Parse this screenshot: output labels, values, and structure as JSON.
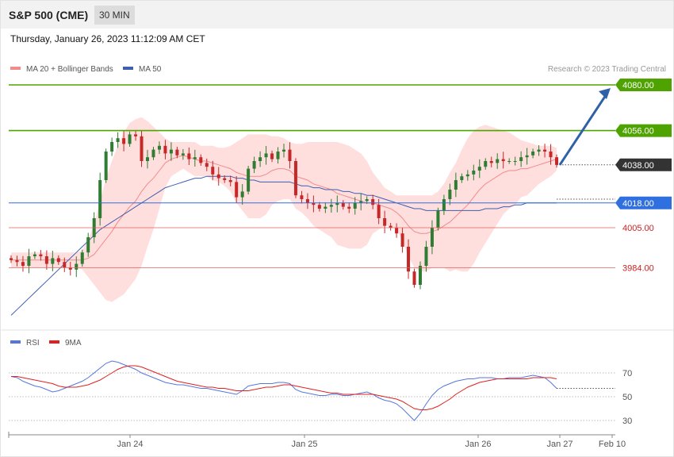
{
  "header": {
    "title": "S&P 500 (CME)",
    "timeframe": "30 MIN",
    "datetime": "Thursday, January 26, 2023 11:12:09 AM CET"
  },
  "legend": {
    "ma20": "MA 20 + Bollinger Bands",
    "ma50": "MA 50",
    "credit": "Research © 2023 Trading Central"
  },
  "rsi_legend": {
    "rsi": "RSI",
    "ma9": "9MA"
  },
  "colors": {
    "up": "#2e7d32",
    "down": "#c62828",
    "ma20": "#f28b8b",
    "ma50": "#3f5fb0",
    "band": "#ffdede",
    "resistance": "#4ea300",
    "pivot": "#2f6fe0",
    "support": "#e06060",
    "rsi": "#5577dd",
    "ma9": "#e02020"
  },
  "chart_data": {
    "type": "candlestick",
    "price_panel": {
      "levels": [
        {
          "label": "4080.00",
          "value": 4080,
          "kind": "resistance"
        },
        {
          "label": "4056.00",
          "value": 4056,
          "kind": "resistance"
        },
        {
          "label": "4038.00",
          "value": 4038,
          "kind": "last"
        },
        {
          "label": "4018.00",
          "value": 4018,
          "kind": "pivot"
        },
        {
          "label": "4005.00",
          "value": 4005,
          "kind": "support"
        },
        {
          "label": "3984.00",
          "value": 3984,
          "kind": "support"
        }
      ],
      "close_path": [
        3988,
        3987,
        3985,
        3990,
        3991,
        3990,
        3986,
        3989,
        3987,
        3984,
        3983,
        3986,
        3992,
        4000,
        4010,
        4030,
        4045,
        4050,
        4052,
        4049,
        4054,
        4053,
        4040,
        4042,
        4046,
        4048,
        4044,
        4046,
        4043,
        4044,
        4041,
        4042,
        4039,
        4037,
        4033,
        4031,
        4030,
        4029,
        4021,
        4024,
        4036,
        4040,
        4042,
        4044,
        4041,
        4045,
        4046,
        4040,
        4022,
        4020,
        4018,
        4017,
        4015,
        4016,
        4017,
        4018,
        4016,
        4015,
        4018,
        4019,
        4020,
        4017,
        4010,
        4006,
        4005,
        4002,
        3995,
        3982,
        3975,
        3985,
        3995,
        4005,
        4014,
        4020,
        4025,
        4030,
        4032,
        4033,
        4035,
        4037,
        4040,
        4039,
        4041,
        4040,
        4040,
        4040,
        4042,
        4043,
        4045,
        4046,
        4045,
        4042,
        4038
      ],
      "ma20": [
        3988,
        3988,
        3988,
        3988,
        3988,
        3988,
        3988,
        3988,
        3988,
        3988,
        3988,
        3988,
        3988,
        3989,
        3991,
        3995,
        3999,
        4003,
        4008,
        4012,
        4016,
        4019,
        4024,
        4028,
        4031,
        4035,
        4039,
        4041,
        4042,
        4043,
        4042,
        4041,
        4040,
        4040,
        4039,
        4038,
        4037,
        4036,
        4034,
        4033,
        4032,
        4032,
        4032,
        4033,
        4035,
        4036,
        4036,
        4035,
        4032,
        4031,
        4030,
        4028,
        4027,
        4026,
        4025,
        4023,
        4022,
        4021,
        4020,
        4019,
        4018,
        4018,
        4017,
        4016,
        4015,
        4013,
        4010,
        4006,
        4003,
        4002,
        4002,
        4003,
        4004,
        4006,
        4008,
        4011,
        4014,
        4017,
        4021,
        4025,
        4028,
        4030,
        4032,
        4034,
        4035,
        4035,
        4036,
        4036,
        4037,
        4038,
        4039,
        4040,
        4041
      ],
      "bb_upper": [
        3992,
        3992,
        3992,
        3992,
        3992,
        3992,
        3992,
        3992,
        3992,
        3992,
        3992,
        3992,
        3993,
        3999,
        4007,
        4019,
        4031,
        4040,
        4048,
        4055,
        4060,
        4062,
        4063,
        4061,
        4058,
        4055,
        4052,
        4050,
        4050,
        4050,
        4050,
        4050,
        4048,
        4048,
        4048,
        4047,
        4047,
        4048,
        4050,
        4052,
        4054,
        4054,
        4054,
        4054,
        4053,
        4053,
        4052,
        4050,
        4049,
        4049,
        4050,
        4050,
        4050,
        4050,
        4050,
        4050,
        4049,
        4048,
        4046,
        4044,
        4040,
        4034,
        4030,
        4026,
        4024,
        4022,
        4022,
        4022,
        4022,
        4022,
        4022,
        4022,
        4024,
        4028,
        4034,
        4039,
        4046,
        4052,
        4056,
        4058,
        4059,
        4058,
        4057,
        4056,
        4055,
        4053,
        4051,
        4050,
        4049,
        4048,
        4048,
        4048,
        4047
      ],
      "bb_lower": [
        3984,
        3984,
        3984,
        3984,
        3984,
        3984,
        3984,
        3984,
        3984,
        3984,
        3984,
        3984,
        3983,
        3979,
        3975,
        3971,
        3967,
        3966,
        3968,
        3970,
        3974,
        3978,
        3985,
        3995,
        4004,
        4015,
        4026,
        4032,
        4034,
        4036,
        4034,
        4032,
        4032,
        4032,
        4030,
        4029,
        4027,
        4024,
        4018,
        4014,
        4010,
        4010,
        4010,
        4012,
        4017,
        4019,
        4020,
        4020,
        4015,
        4013,
        4010,
        4006,
        4004,
        4002,
        4000,
        3996,
        3995,
        3994,
        3994,
        3994,
        3996,
        4002,
        4004,
        4006,
        4006,
        4004,
        3998,
        3990,
        3984,
        3982,
        3982,
        3984,
        3984,
        3984,
        3982,
        3983,
        3982,
        3982,
        3986,
        3992,
        3997,
        4002,
        4007,
        4012,
        4015,
        4017,
        4021,
        4022,
        4025,
        4028,
        4030,
        4032,
        4035
      ],
      "ma50": [
        3959,
        3962,
        3965,
        3968,
        3971,
        3974,
        3977,
        3980,
        3983,
        3986,
        3989,
        3992,
        3995,
        3998,
        4001,
        4004,
        4006,
        4008,
        4010,
        4012,
        4014,
        4016,
        4018,
        4020,
        4022,
        4024,
        4026,
        4027,
        4028,
        4029,
        4030,
        4031,
        4031,
        4032,
        4032,
        4032,
        4032,
        4032,
        4031,
        4031,
        4030,
        4030,
        4029,
        4029,
        4029,
        4029,
        4029,
        4029,
        4028,
        4027,
        4027,
        4026,
        4026,
        4025,
        4025,
        4025,
        4024,
        4024,
        4023,
        4023,
        4022,
        4022,
        4021,
        4020,
        4019,
        4018,
        4017,
        4016,
        4015,
        4015,
        4014,
        4014,
        4014,
        4014,
        4014,
        4014,
        4014,
        4014,
        4014,
        4014,
        4015,
        4015,
        4015,
        4016,
        4016,
        4017,
        4017,
        4018,
        4018,
        4018,
        4018,
        4018,
        4018
      ],
      "forecast_arrow": {
        "from": 4038,
        "to": 4080
      }
    },
    "rsi_panel": {
      "ylim": [
        20,
        80
      ],
      "yticks": [
        70,
        50,
        30
      ],
      "rsi": [
        67,
        66,
        63,
        61,
        59,
        58,
        56,
        54,
        55,
        57,
        59,
        61,
        63,
        66,
        70,
        74,
        78,
        80,
        79,
        77,
        75,
        73,
        70,
        68,
        66,
        64,
        62,
        61,
        60,
        60,
        59,
        58,
        57,
        57,
        56,
        55,
        54,
        53,
        52,
        55,
        59,
        60,
        61,
        61,
        61,
        62,
        62,
        61,
        56,
        54,
        53,
        52,
        51,
        51,
        52,
        52,
        51,
        51,
        52,
        53,
        54,
        52,
        49,
        47,
        46,
        44,
        40,
        35,
        30,
        36,
        44,
        51,
        56,
        59,
        61,
        63,
        64,
        65,
        65,
        66,
        66,
        66,
        65,
        65,
        66,
        66,
        66,
        67,
        68,
        67,
        66,
        62,
        57
      ],
      "ma9": [
        67,
        67,
        66,
        65,
        64,
        63,
        62,
        61,
        59,
        58,
        58,
        58,
        59,
        60,
        62,
        64,
        67,
        70,
        73,
        75,
        76,
        76,
        75,
        73,
        71,
        69,
        67,
        65,
        63,
        62,
        61,
        60,
        59,
        58,
        58,
        57,
        57,
        56,
        55,
        55,
        55,
        56,
        57,
        58,
        58,
        59,
        60,
        60,
        59,
        58,
        57,
        56,
        55,
        54,
        53,
        53,
        52,
        52,
        52,
        52,
        52,
        52,
        51,
        50,
        49,
        48,
        46,
        43,
        40,
        39,
        39,
        40,
        42,
        45,
        48,
        52,
        55,
        58,
        60,
        62,
        63,
        64,
        65,
        65,
        65,
        65,
        65,
        65,
        66,
        66,
        66,
        66,
        65
      ],
      "rsi_last": 57
    },
    "x_ticks": [
      "Jan 24",
      "Jan 25",
      "Jan 26",
      "Jan 27",
      "Feb 10"
    ]
  }
}
